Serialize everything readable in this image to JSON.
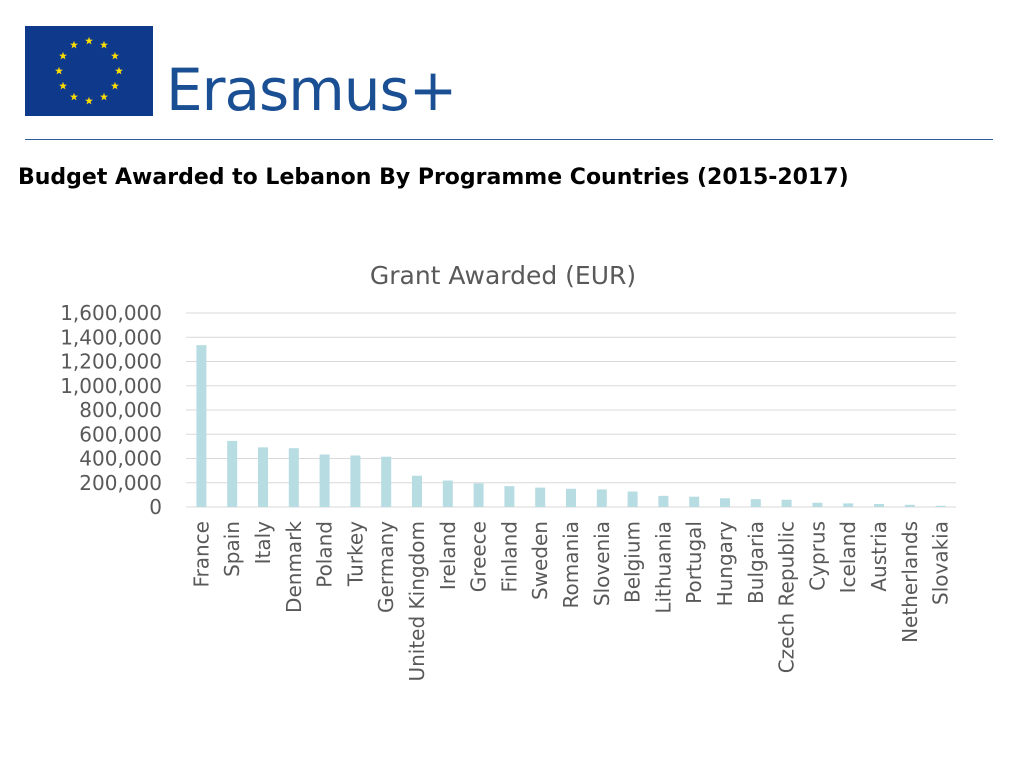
{
  "header": {
    "logo_text": "Erasmus+",
    "headline": "Budget Awarded to Lebanon By Programme Countries (2015-2017)"
  },
  "colors": {
    "flag_blue": "#0f3a8c",
    "flag_star": "#ffdd00",
    "brand": "#1b4f93",
    "bar": "#b7dde3",
    "grid": "#d9d9d9",
    "text": "#595959"
  },
  "chart_data": {
    "type": "bar",
    "title": "Grant Awarded (EUR)",
    "xlabel": "",
    "ylabel": "",
    "ylim": [
      0,
      1600000
    ],
    "yticks": [
      0,
      200000,
      400000,
      600000,
      800000,
      1000000,
      1200000,
      1400000,
      1600000
    ],
    "ytick_labels": [
      "0",
      "200,000",
      "400,000",
      "600,000",
      "800,000",
      "1,000,000",
      "1,200,000",
      "1,400,000",
      "1,600,000"
    ],
    "grid": true,
    "categories": [
      "France",
      "Spain",
      "Italy",
      "Denmark",
      "Poland",
      "Turkey",
      "Germany",
      "United Kingdom",
      "Ireland",
      "Greece",
      "Finland",
      "Sweden",
      "Romania",
      "Slovenia",
      "Belgium",
      "Lithuania",
      "Portugal",
      "Hungary",
      "Bulgaria",
      "Czech Republic",
      "Cyprus",
      "Iceland",
      "Austria",
      "Netherlands",
      "Slovakia"
    ],
    "values": [
      1335000,
      545000,
      492000,
      485000,
      433000,
      425000,
      415000,
      258000,
      218000,
      195000,
      172000,
      160000,
      150000,
      145000,
      128000,
      92000,
      85000,
      72000,
      65000,
      60000,
      35000,
      30000,
      25000,
      18000,
      10000
    ]
  }
}
